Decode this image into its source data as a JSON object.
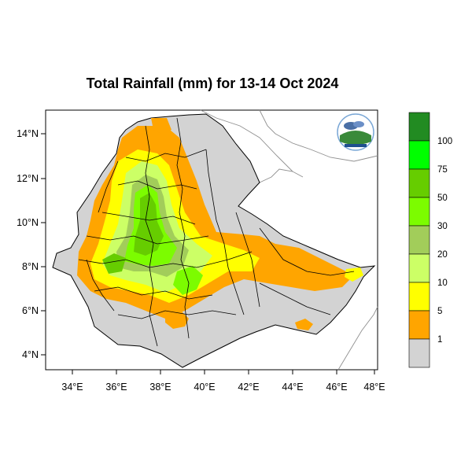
{
  "title": "Total Rainfall (mm) for 13-14 Oct 2024",
  "colors": {
    "nodata": "#d3d3d3",
    "c1": "#ffa500",
    "c5": "#ffff00",
    "c10": "#ccff66",
    "c20": "#a2cd5a",
    "c30": "#7cfc00",
    "c50": "#66cd00",
    "c75": "#00ff00",
    "c100": "#228b22",
    "border": "#000000",
    "outside": "#808080"
  },
  "axes": {
    "lon_labels": [
      "34°E",
      "36°E",
      "38°E",
      "40°E",
      "42°E",
      "44°E",
      "46°E",
      "48°E"
    ],
    "lat_labels": [
      "14°N",
      "12°N",
      "10°N",
      "8°N",
      "6°N",
      "4°N"
    ]
  },
  "legend": {
    "labels": [
      "100",
      "75",
      "50",
      "30",
      "20",
      "10",
      "5",
      "1"
    ]
  }
}
